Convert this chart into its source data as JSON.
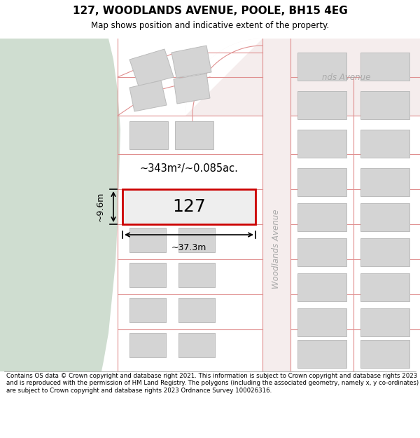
{
  "title": "127, WOODLANDS AVENUE, POOLE, BH15 4EG",
  "subtitle": "Map shows position and indicative extent of the property.",
  "footer": "Contains OS data © Crown copyright and database right 2021. This information is subject to Crown copyright and database rights 2023 and is reproduced with the permission of HM Land Registry. The polygons (including the associated geometry, namely x, y co-ordinates) are subject to Crown copyright and database rights 2023 Ordnance Survey 100026316.",
  "map_bg": "#ffffff",
  "green_area_color": "#cfddd0",
  "plot_fill": "#eeeeee",
  "plot_border": "#cc0000",
  "road_line_color": "#e09090",
  "building_fill": "#d4d4d4",
  "building_border": "#bbbbbb",
  "road_fill": "#f5eded",
  "street_label_color": "#aaaaaa",
  "area_label": "~343m²/~0.085ac.",
  "width_label": "~37.3m",
  "height_label": "~9.6m",
  "plot_number": "127",
  "woodlands_avenue_label": "Woodlands Avenue",
  "woodlands_avenue_top_label": "nds Avenue"
}
